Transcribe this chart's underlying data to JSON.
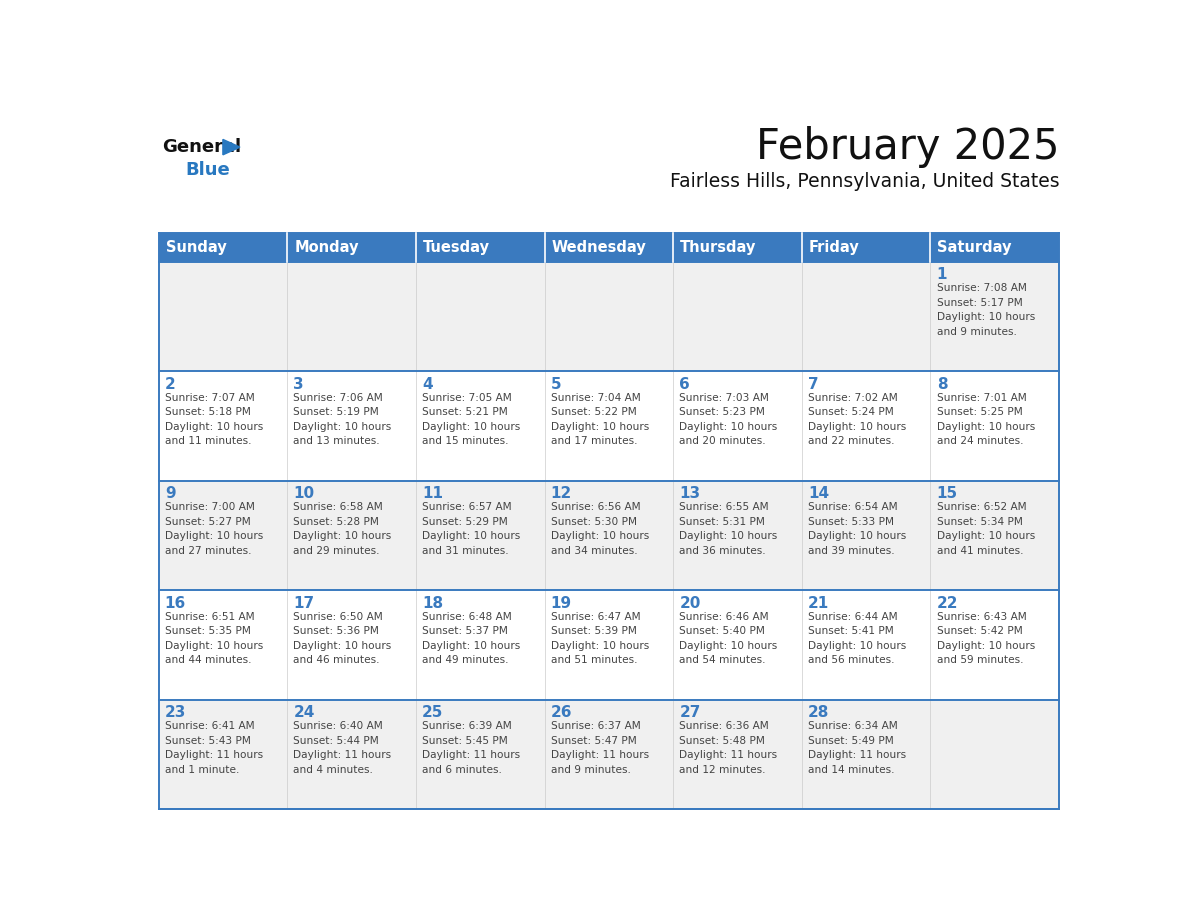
{
  "title": "February 2025",
  "subtitle": "Fairless Hills, Pennsylvania, United States",
  "header_bg": "#3a7abf",
  "header_text_color": "#ffffff",
  "cell_bg_gray": "#f0f0f0",
  "cell_bg_white": "#ffffff",
  "day_number_color": "#3a7abf",
  "text_color": "#444444",
  "border_color": "#3a7abf",
  "days_of_week": [
    "Sunday",
    "Monday",
    "Tuesday",
    "Wednesday",
    "Thursday",
    "Friday",
    "Saturday"
  ],
  "weeks": [
    [
      {
        "day": null,
        "info": null
      },
      {
        "day": null,
        "info": null
      },
      {
        "day": null,
        "info": null
      },
      {
        "day": null,
        "info": null
      },
      {
        "day": null,
        "info": null
      },
      {
        "day": null,
        "info": null
      },
      {
        "day": 1,
        "info": "Sunrise: 7:08 AM\nSunset: 5:17 PM\nDaylight: 10 hours\nand 9 minutes."
      }
    ],
    [
      {
        "day": 2,
        "info": "Sunrise: 7:07 AM\nSunset: 5:18 PM\nDaylight: 10 hours\nand 11 minutes."
      },
      {
        "day": 3,
        "info": "Sunrise: 7:06 AM\nSunset: 5:19 PM\nDaylight: 10 hours\nand 13 minutes."
      },
      {
        "day": 4,
        "info": "Sunrise: 7:05 AM\nSunset: 5:21 PM\nDaylight: 10 hours\nand 15 minutes."
      },
      {
        "day": 5,
        "info": "Sunrise: 7:04 AM\nSunset: 5:22 PM\nDaylight: 10 hours\nand 17 minutes."
      },
      {
        "day": 6,
        "info": "Sunrise: 7:03 AM\nSunset: 5:23 PM\nDaylight: 10 hours\nand 20 minutes."
      },
      {
        "day": 7,
        "info": "Sunrise: 7:02 AM\nSunset: 5:24 PM\nDaylight: 10 hours\nand 22 minutes."
      },
      {
        "day": 8,
        "info": "Sunrise: 7:01 AM\nSunset: 5:25 PM\nDaylight: 10 hours\nand 24 minutes."
      }
    ],
    [
      {
        "day": 9,
        "info": "Sunrise: 7:00 AM\nSunset: 5:27 PM\nDaylight: 10 hours\nand 27 minutes."
      },
      {
        "day": 10,
        "info": "Sunrise: 6:58 AM\nSunset: 5:28 PM\nDaylight: 10 hours\nand 29 minutes."
      },
      {
        "day": 11,
        "info": "Sunrise: 6:57 AM\nSunset: 5:29 PM\nDaylight: 10 hours\nand 31 minutes."
      },
      {
        "day": 12,
        "info": "Sunrise: 6:56 AM\nSunset: 5:30 PM\nDaylight: 10 hours\nand 34 minutes."
      },
      {
        "day": 13,
        "info": "Sunrise: 6:55 AM\nSunset: 5:31 PM\nDaylight: 10 hours\nand 36 minutes."
      },
      {
        "day": 14,
        "info": "Sunrise: 6:54 AM\nSunset: 5:33 PM\nDaylight: 10 hours\nand 39 minutes."
      },
      {
        "day": 15,
        "info": "Sunrise: 6:52 AM\nSunset: 5:34 PM\nDaylight: 10 hours\nand 41 minutes."
      }
    ],
    [
      {
        "day": 16,
        "info": "Sunrise: 6:51 AM\nSunset: 5:35 PM\nDaylight: 10 hours\nand 44 minutes."
      },
      {
        "day": 17,
        "info": "Sunrise: 6:50 AM\nSunset: 5:36 PM\nDaylight: 10 hours\nand 46 minutes."
      },
      {
        "day": 18,
        "info": "Sunrise: 6:48 AM\nSunset: 5:37 PM\nDaylight: 10 hours\nand 49 minutes."
      },
      {
        "day": 19,
        "info": "Sunrise: 6:47 AM\nSunset: 5:39 PM\nDaylight: 10 hours\nand 51 minutes."
      },
      {
        "day": 20,
        "info": "Sunrise: 6:46 AM\nSunset: 5:40 PM\nDaylight: 10 hours\nand 54 minutes."
      },
      {
        "day": 21,
        "info": "Sunrise: 6:44 AM\nSunset: 5:41 PM\nDaylight: 10 hours\nand 56 minutes."
      },
      {
        "day": 22,
        "info": "Sunrise: 6:43 AM\nSunset: 5:42 PM\nDaylight: 10 hours\nand 59 minutes."
      }
    ],
    [
      {
        "day": 23,
        "info": "Sunrise: 6:41 AM\nSunset: 5:43 PM\nDaylight: 11 hours\nand 1 minute."
      },
      {
        "day": 24,
        "info": "Sunrise: 6:40 AM\nSunset: 5:44 PM\nDaylight: 11 hours\nand 4 minutes."
      },
      {
        "day": 25,
        "info": "Sunrise: 6:39 AM\nSunset: 5:45 PM\nDaylight: 11 hours\nand 6 minutes."
      },
      {
        "day": 26,
        "info": "Sunrise: 6:37 AM\nSunset: 5:47 PM\nDaylight: 11 hours\nand 9 minutes."
      },
      {
        "day": 27,
        "info": "Sunrise: 6:36 AM\nSunset: 5:48 PM\nDaylight: 11 hours\nand 12 minutes."
      },
      {
        "day": 28,
        "info": "Sunrise: 6:34 AM\nSunset: 5:49 PM\nDaylight: 11 hours\nand 14 minutes."
      },
      {
        "day": null,
        "info": null
      }
    ]
  ],
  "logo_general_color": "#111111",
  "logo_blue_color": "#2878c0",
  "logo_triangle_color": "#2878c0",
  "row_bg_colors": [
    "#f0f0f0",
    "#ffffff",
    "#f0f0f0",
    "#ffffff",
    "#f0f0f0"
  ]
}
